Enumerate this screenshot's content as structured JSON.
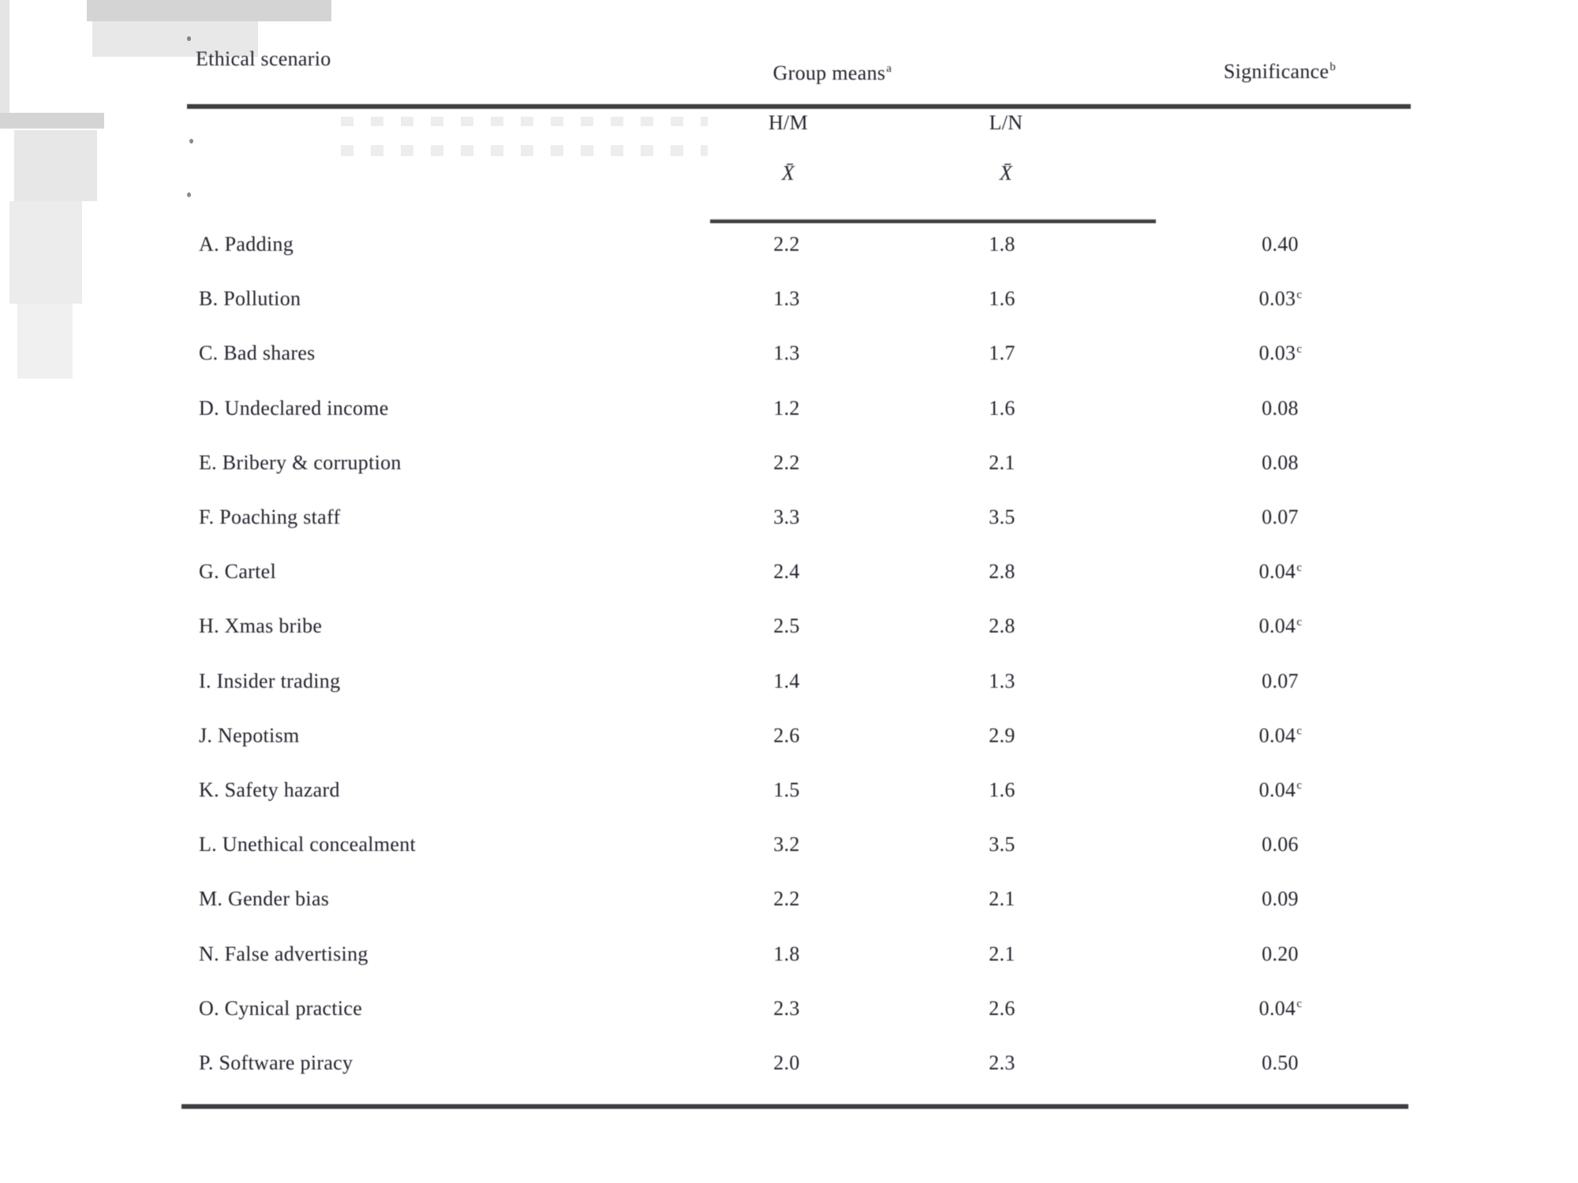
{
  "table": {
    "header": {
      "scenario_col": "Ethical scenario",
      "group_means": "Group means",
      "group_means_sup": "a",
      "significance": "Significance",
      "significance_sup": "b",
      "subcol_hm": "H/M",
      "subcol_ln": "L/N",
      "mean_symbol_hm": "X̄",
      "mean_symbol_ln": "X̄"
    },
    "rows": [
      {
        "label": "A. Padding",
        "hm": "2.2",
        "ln": "1.8",
        "sig": "0.40",
        "sig_sup": ""
      },
      {
        "label": "B. Pollution",
        "hm": "1.3",
        "ln": "1.6",
        "sig": "0.03",
        "sig_sup": "c"
      },
      {
        "label": "C. Bad shares",
        "hm": "1.3",
        "ln": "1.7",
        "sig": "0.03",
        "sig_sup": "c"
      },
      {
        "label": "D. Undeclared income",
        "hm": "1.2",
        "ln": "1.6",
        "sig": "0.08",
        "sig_sup": ""
      },
      {
        "label": "E. Bribery & corruption",
        "hm": "2.2",
        "ln": "2.1",
        "sig": "0.08",
        "sig_sup": ""
      },
      {
        "label": "F. Poaching staff",
        "hm": "3.3",
        "ln": "3.5",
        "sig": "0.07",
        "sig_sup": ""
      },
      {
        "label": "G. Cartel",
        "hm": "2.4",
        "ln": "2.8",
        "sig": "0.04",
        "sig_sup": "c"
      },
      {
        "label": "H. Xmas bribe",
        "hm": "2.5",
        "ln": "2.8",
        "sig": "0.04",
        "sig_sup": "c"
      },
      {
        "label": "I.  Insider trading",
        "hm": "1.4",
        "ln": "1.3",
        "sig": "0.07",
        "sig_sup": ""
      },
      {
        "label": "J.  Nepotism",
        "hm": "2.6",
        "ln": "2.9",
        "sig": "0.04",
        "sig_sup": "c"
      },
      {
        "label": "K. Safety hazard",
        "hm": "1.5",
        "ln": "1.6",
        "sig": "0.04",
        "sig_sup": "c"
      },
      {
        "label": "L. Unethical concealment",
        "hm": "3.2",
        "ln": "3.5",
        "sig": "0.06",
        "sig_sup": ""
      },
      {
        "label": "M. Gender bias",
        "hm": "2.2",
        "ln": "2.1",
        "sig": "0.09",
        "sig_sup": ""
      },
      {
        "label": "N. False advertising",
        "hm": "1.8",
        "ln": "2.1",
        "sig": "0.20",
        "sig_sup": ""
      },
      {
        "label": "O. Cynical practice",
        "hm": "2.3",
        "ln": "2.6",
        "sig": "0.04",
        "sig_sup": "c"
      },
      {
        "label": "P.  Software piracy",
        "hm": "2.0",
        "ln": "2.3",
        "sig": "0.50",
        "sig_sup": ""
      }
    ]
  },
  "colors": {
    "background": "#ffffff",
    "text": "#23232e",
    "rule": "#3e3e42",
    "artifact_gray": "#d4d4d4"
  }
}
